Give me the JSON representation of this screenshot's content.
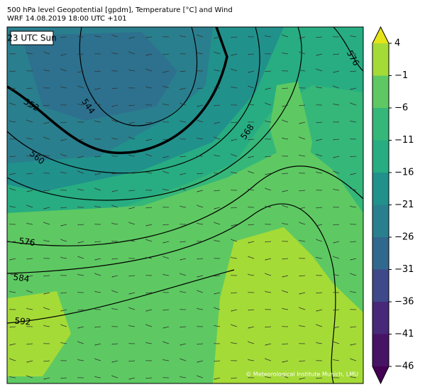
{
  "header": {
    "title": "500 hPa level Geopotential [gpdm], Temperature [°C] and Wind",
    "subtitle": "WRF 14.08.2019 18:00 UTC +101"
  },
  "map": {
    "time_label": "23 UTC Sun",
    "contour_labels": [
      "552",
      "544",
      "560",
      "568",
      "576",
      "576",
      "584",
      "592"
    ],
    "credit": "© Meteorological Institute Munich, LMU"
  },
  "colorbar": {
    "labels": [
      "4",
      "−1",
      "−6",
      "−11",
      "−16",
      "−21",
      "−26",
      "−31",
      "−36",
      "−41",
      "−46"
    ],
    "colors": [
      "#e5e419",
      "#a5db36",
      "#5ec962",
      "#35b779",
      "#27ad81",
      "#21918c",
      "#2a7f8e",
      "#31688e",
      "#3e4989",
      "#482878",
      "#471365",
      "#440154"
    ]
  }
}
